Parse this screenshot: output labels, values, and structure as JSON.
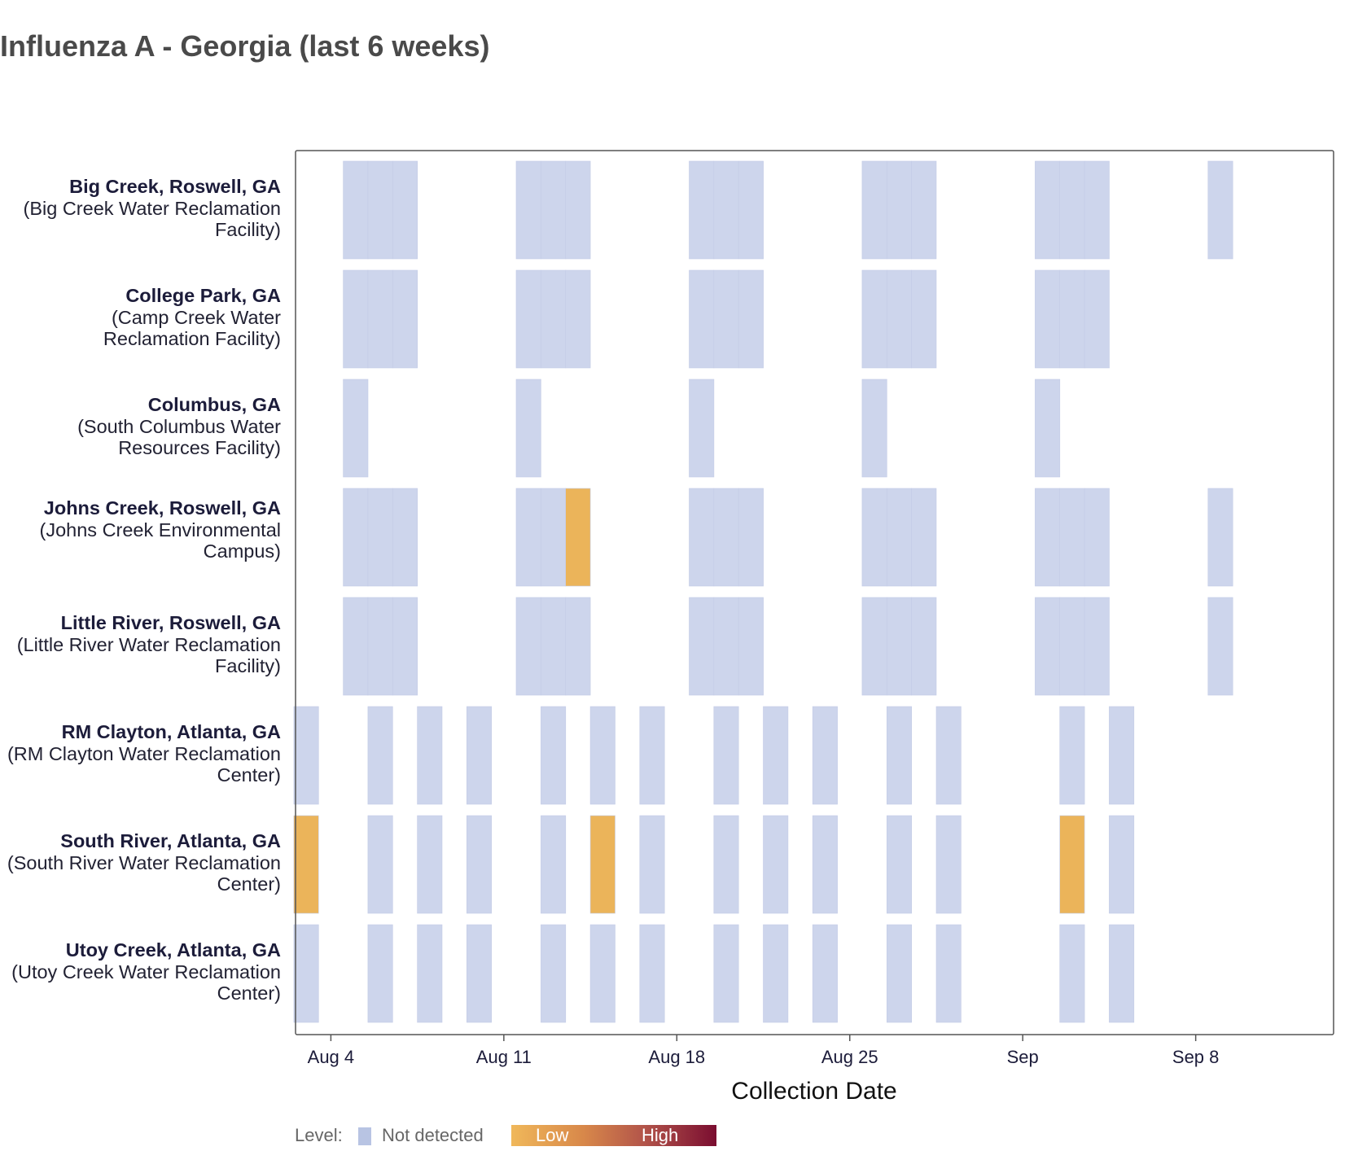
{
  "title": "Influenza A - Georgia (last 6 weeks)",
  "colors": {
    "not_detected": "#cdd5ec",
    "low": "#ebb45a",
    "high": "#7a0d30",
    "legend_not_detected": "#b8c4e3"
  },
  "legend": {
    "level_label": "Level:",
    "not_detected_label": "Not detected",
    "low_label": "Low",
    "high_label": "High"
  },
  "sites": [
    {
      "name": "Big Creek, Roswell, GA",
      "facility": "(Big Creek Water Reclamation Facility)"
    },
    {
      "name": "College Park, GA",
      "facility": "(Camp Creek Water Reclamation Facility)"
    },
    {
      "name": "Columbus, GA",
      "facility": "(South Columbus Water Resources Facility)"
    },
    {
      "name": "Johns Creek, Roswell, GA",
      "facility": "(Johns Creek Environmental Campus)"
    },
    {
      "name": "Little River, Roswell, GA",
      "facility": "(Little River Water Reclamation Facility)"
    },
    {
      "name": "RM Clayton, Atlanta, GA",
      "facility": "(RM Clayton Water Reclamation Center)"
    },
    {
      "name": "South River, Atlanta, GA",
      "facility": "(South River Water Reclamation Center)"
    },
    {
      "name": "Utoy Creek, Atlanta, GA",
      "facility": "(Utoy Creek Water Reclamation Center)"
    }
  ],
  "chart_data": {
    "type": "heatmap",
    "title": "Influenza A - Georgia (last 6 weeks)",
    "xlabel": "Collection Date",
    "ylabel": "",
    "x_ticks": [
      {
        "date": "Aug 4",
        "label": "Aug 4"
      },
      {
        "date": "Aug 11",
        "label": "Aug 11"
      },
      {
        "date": "Aug 18",
        "label": "Aug 18"
      },
      {
        "date": "Aug 25",
        "label": "Aug 25"
      },
      {
        "date": "Sep 1",
        "label": "Sep"
      },
      {
        "date": "Sep 8",
        "label": "Sep 8"
      }
    ],
    "x_range": [
      "Aug 2",
      "Sep 13"
    ],
    "legend_position": "bottom",
    "series": [
      {
        "name": "Big Creek, Roswell, GA",
        "samples": [
          {
            "date": "Aug 5",
            "level": "Not detected"
          },
          {
            "date": "Aug 6",
            "level": "Not detected"
          },
          {
            "date": "Aug 7",
            "level": "Not detected"
          },
          {
            "date": "Aug 12",
            "level": "Not detected"
          },
          {
            "date": "Aug 13",
            "level": "Not detected"
          },
          {
            "date": "Aug 14",
            "level": "Not detected"
          },
          {
            "date": "Aug 19",
            "level": "Not detected"
          },
          {
            "date": "Aug 20",
            "level": "Not detected"
          },
          {
            "date": "Aug 21",
            "level": "Not detected"
          },
          {
            "date": "Aug 26",
            "level": "Not detected"
          },
          {
            "date": "Aug 27",
            "level": "Not detected"
          },
          {
            "date": "Aug 28",
            "level": "Not detected"
          },
          {
            "date": "Sep 2",
            "level": "Not detected"
          },
          {
            "date": "Sep 3",
            "level": "Not detected"
          },
          {
            "date": "Sep 4",
            "level": "Not detected"
          },
          {
            "date": "Sep 9",
            "level": "Not detected"
          }
        ]
      },
      {
        "name": "College Park, GA",
        "samples": [
          {
            "date": "Aug 5",
            "level": "Not detected"
          },
          {
            "date": "Aug 6",
            "level": "Not detected"
          },
          {
            "date": "Aug 7",
            "level": "Not detected"
          },
          {
            "date": "Aug 12",
            "level": "Not detected"
          },
          {
            "date": "Aug 13",
            "level": "Not detected"
          },
          {
            "date": "Aug 14",
            "level": "Not detected"
          },
          {
            "date": "Aug 19",
            "level": "Not detected"
          },
          {
            "date": "Aug 20",
            "level": "Not detected"
          },
          {
            "date": "Aug 21",
            "level": "Not detected"
          },
          {
            "date": "Aug 26",
            "level": "Not detected"
          },
          {
            "date": "Aug 27",
            "level": "Not detected"
          },
          {
            "date": "Aug 28",
            "level": "Not detected"
          },
          {
            "date": "Sep 2",
            "level": "Not detected"
          },
          {
            "date": "Sep 3",
            "level": "Not detected"
          },
          {
            "date": "Sep 4",
            "level": "Not detected"
          }
        ]
      },
      {
        "name": "Columbus, GA",
        "samples": [
          {
            "date": "Aug 5",
            "level": "Not detected"
          },
          {
            "date": "Aug 12",
            "level": "Not detected"
          },
          {
            "date": "Aug 19",
            "level": "Not detected"
          },
          {
            "date": "Aug 26",
            "level": "Not detected"
          },
          {
            "date": "Sep 2",
            "level": "Not detected"
          }
        ]
      },
      {
        "name": "Johns Creek, Roswell, GA",
        "samples": [
          {
            "date": "Aug 5",
            "level": "Not detected"
          },
          {
            "date": "Aug 6",
            "level": "Not detected"
          },
          {
            "date": "Aug 7",
            "level": "Not detected"
          },
          {
            "date": "Aug 12",
            "level": "Not detected"
          },
          {
            "date": "Aug 13",
            "level": "Not detected"
          },
          {
            "date": "Aug 14",
            "level": "Low"
          },
          {
            "date": "Aug 19",
            "level": "Not detected"
          },
          {
            "date": "Aug 20",
            "level": "Not detected"
          },
          {
            "date": "Aug 21",
            "level": "Not detected"
          },
          {
            "date": "Aug 26",
            "level": "Not detected"
          },
          {
            "date": "Aug 27",
            "level": "Not detected"
          },
          {
            "date": "Aug 28",
            "level": "Not detected"
          },
          {
            "date": "Sep 2",
            "level": "Not detected"
          },
          {
            "date": "Sep 3",
            "level": "Not detected"
          },
          {
            "date": "Sep 4",
            "level": "Not detected"
          },
          {
            "date": "Sep 9",
            "level": "Not detected"
          }
        ]
      },
      {
        "name": "Little River, Roswell, GA",
        "samples": [
          {
            "date": "Aug 5",
            "level": "Not detected"
          },
          {
            "date": "Aug 6",
            "level": "Not detected"
          },
          {
            "date": "Aug 7",
            "level": "Not detected"
          },
          {
            "date": "Aug 12",
            "level": "Not detected"
          },
          {
            "date": "Aug 13",
            "level": "Not detected"
          },
          {
            "date": "Aug 14",
            "level": "Not detected"
          },
          {
            "date": "Aug 19",
            "level": "Not detected"
          },
          {
            "date": "Aug 20",
            "level": "Not detected"
          },
          {
            "date": "Aug 21",
            "level": "Not detected"
          },
          {
            "date": "Aug 26",
            "level": "Not detected"
          },
          {
            "date": "Aug 27",
            "level": "Not detected"
          },
          {
            "date": "Aug 28",
            "level": "Not detected"
          },
          {
            "date": "Sep 2",
            "level": "Not detected"
          },
          {
            "date": "Sep 3",
            "level": "Not detected"
          },
          {
            "date": "Sep 4",
            "level": "Not detected"
          },
          {
            "date": "Sep 9",
            "level": "Not detected"
          }
        ]
      },
      {
        "name": "RM Clayton, Atlanta, GA",
        "samples": [
          {
            "date": "Aug 3",
            "level": "Not detected"
          },
          {
            "date": "Aug 6",
            "level": "Not detected"
          },
          {
            "date": "Aug 8",
            "level": "Not detected"
          },
          {
            "date": "Aug 10",
            "level": "Not detected"
          },
          {
            "date": "Aug 13",
            "level": "Not detected"
          },
          {
            "date": "Aug 15",
            "level": "Not detected"
          },
          {
            "date": "Aug 17",
            "level": "Not detected"
          },
          {
            "date": "Aug 20",
            "level": "Not detected"
          },
          {
            "date": "Aug 22",
            "level": "Not detected"
          },
          {
            "date": "Aug 24",
            "level": "Not detected"
          },
          {
            "date": "Aug 27",
            "level": "Not detected"
          },
          {
            "date": "Aug 29",
            "level": "Not detected"
          },
          {
            "date": "Sep 3",
            "level": "Not detected"
          },
          {
            "date": "Sep 5",
            "level": "Not detected"
          }
        ]
      },
      {
        "name": "South River, Atlanta, GA",
        "samples": [
          {
            "date": "Aug 3",
            "level": "Low"
          },
          {
            "date": "Aug 6",
            "level": "Not detected"
          },
          {
            "date": "Aug 8",
            "level": "Not detected"
          },
          {
            "date": "Aug 10",
            "level": "Not detected"
          },
          {
            "date": "Aug 13",
            "level": "Not detected"
          },
          {
            "date": "Aug 15",
            "level": "Low"
          },
          {
            "date": "Aug 17",
            "level": "Not detected"
          },
          {
            "date": "Aug 20",
            "level": "Not detected"
          },
          {
            "date": "Aug 22",
            "level": "Not detected"
          },
          {
            "date": "Aug 24",
            "level": "Not detected"
          },
          {
            "date": "Aug 27",
            "level": "Not detected"
          },
          {
            "date": "Aug 29",
            "level": "Not detected"
          },
          {
            "date": "Sep 3",
            "level": "Low"
          },
          {
            "date": "Sep 5",
            "level": "Not detected"
          }
        ]
      },
      {
        "name": "Utoy Creek, Atlanta, GA",
        "samples": [
          {
            "date": "Aug 3",
            "level": "Not detected"
          },
          {
            "date": "Aug 6",
            "level": "Not detected"
          },
          {
            "date": "Aug 8",
            "level": "Not detected"
          },
          {
            "date": "Aug 10",
            "level": "Not detected"
          },
          {
            "date": "Aug 13",
            "level": "Not detected"
          },
          {
            "date": "Aug 15",
            "level": "Not detected"
          },
          {
            "date": "Aug 17",
            "level": "Not detected"
          },
          {
            "date": "Aug 20",
            "level": "Not detected"
          },
          {
            "date": "Aug 22",
            "level": "Not detected"
          },
          {
            "date": "Aug 24",
            "level": "Not detected"
          },
          {
            "date": "Aug 27",
            "level": "Not detected"
          },
          {
            "date": "Aug 29",
            "level": "Not detected"
          },
          {
            "date": "Sep 3",
            "level": "Not detected"
          },
          {
            "date": "Sep 5",
            "level": "Not detected"
          }
        ]
      }
    ]
  }
}
